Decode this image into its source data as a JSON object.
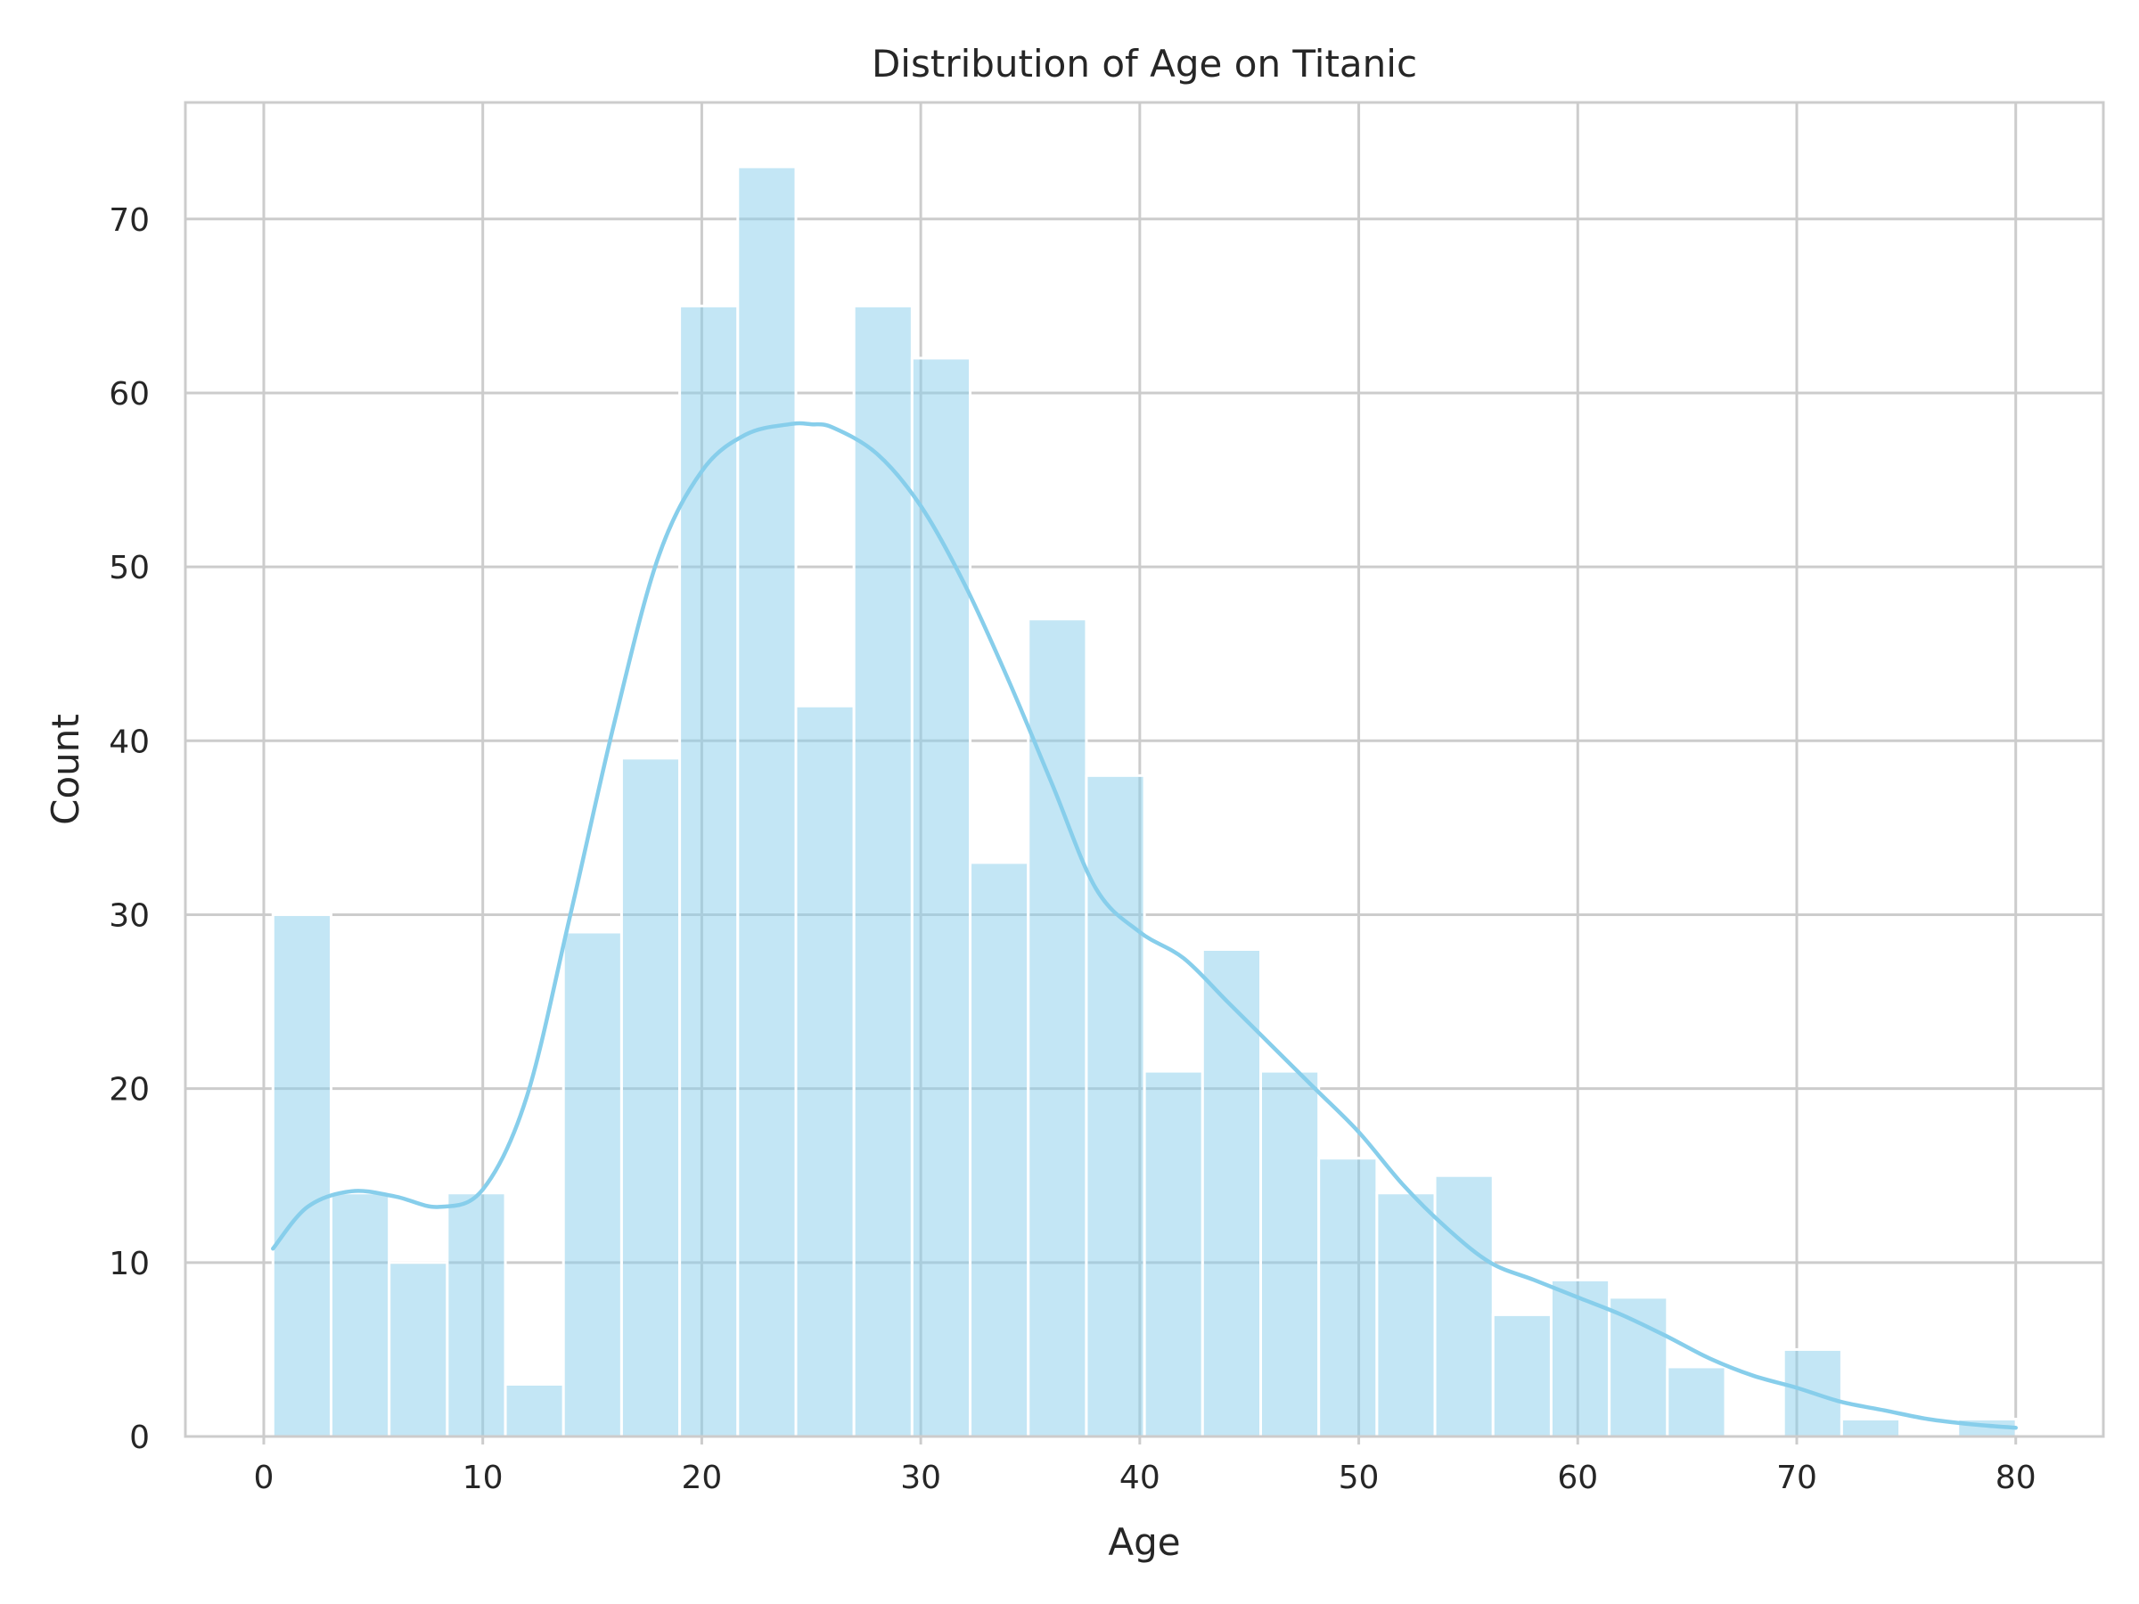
{
  "chart_data": {
    "type": "bar",
    "title": "Distribution of Age on Titanic",
    "xlabel": "Age",
    "ylabel": "Count",
    "xlim": [
      -3.58,
      84.0
    ],
    "ylim": [
      0,
      76.7
    ],
    "xticks": [
      0,
      10,
      20,
      30,
      40,
      50,
      60,
      70,
      80
    ],
    "yticks": [
      0,
      10,
      20,
      30,
      40,
      50,
      60,
      70
    ],
    "grid": true,
    "bin_start": 0.42,
    "bin_width": 2.653,
    "values": [
      30,
      14,
      10,
      14,
      3,
      29,
      39,
      65,
      73,
      42,
      65,
      62,
      33,
      47,
      38,
      21,
      28,
      21,
      16,
      14,
      15,
      7,
      9,
      8,
      4,
      0,
      5,
      1,
      0,
      1
    ],
    "kde": {
      "x": [
        0.42,
        2,
        4,
        6,
        8,
        10,
        12,
        14,
        16,
        18,
        20,
        22,
        24,
        25,
        26,
        28,
        30,
        32,
        34,
        36,
        38,
        40,
        42,
        44,
        46,
        48,
        50,
        52,
        54,
        56,
        58,
        60,
        62,
        64,
        66,
        68,
        70,
        72,
        74,
        76,
        78,
        80
      ],
      "y": [
        10.8,
        13.2,
        14.1,
        13.8,
        13.2,
        14.2,
        19.5,
        30.0,
        41.0,
        50.5,
        55.5,
        57.6,
        58.2,
        58.2,
        58.0,
        56.5,
        53.5,
        49.0,
        43.5,
        37.5,
        31.5,
        29.0,
        27.5,
        25.0,
        22.5,
        20.0,
        17.5,
        14.5,
        12.0,
        10.0,
        9.0,
        8.0,
        7.0,
        5.8,
        4.5,
        3.5,
        2.8,
        2.0,
        1.5,
        1.0,
        0.7,
        0.5
      ]
    },
    "bar_color": "#87ceeb",
    "line_color": "#87ceeb"
  }
}
